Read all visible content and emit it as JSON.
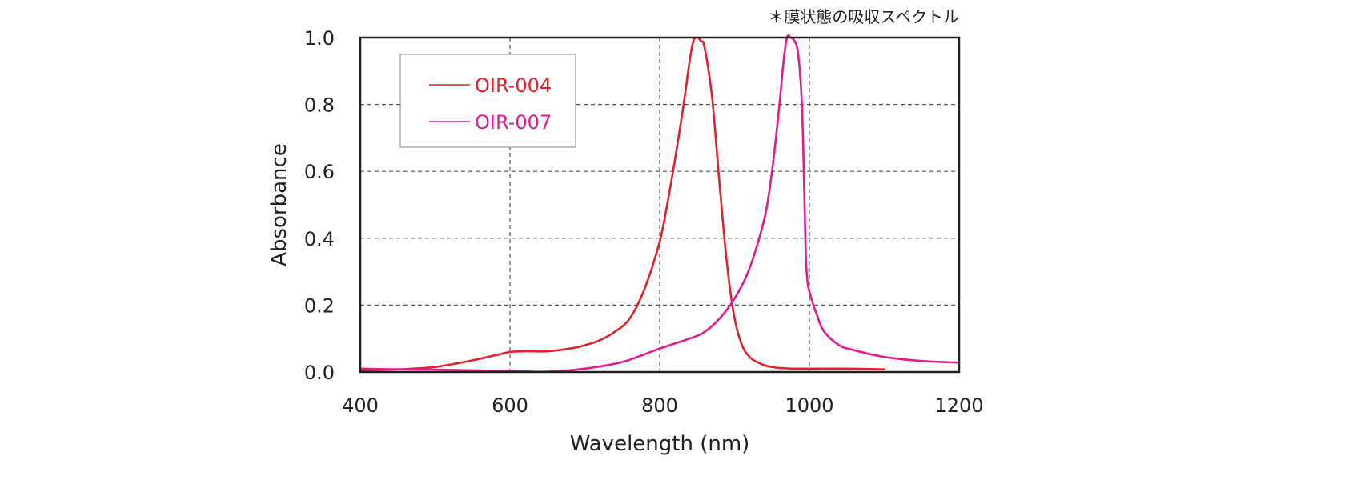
{
  "chart_data": {
    "type": "line",
    "title": "",
    "note": "＊膜状態の吸収スペクトル",
    "xlabel": "Wavelength (nm)",
    "ylabel": "Absorbance",
    "xlim": [
      400,
      1200
    ],
    "ylim": [
      0,
      1.0
    ],
    "xticks": [
      "400",
      "600",
      "800",
      "1000",
      "1200"
    ],
    "yticks": [
      "0.0",
      "0.2",
      "0.4",
      "0.6",
      "0.8",
      "1.0"
    ],
    "grid": true,
    "legend_position": "top-left",
    "series": [
      {
        "name": "OIR-004",
        "color": "#e3202a",
        "x": [
          400,
          450,
          500,
          550,
          580,
          600,
          620,
          650,
          680,
          700,
          720,
          740,
          760,
          780,
          800,
          810,
          820,
          830,
          840,
          845,
          850,
          855,
          860,
          870,
          880,
          890,
          900,
          910,
          920,
          930,
          940,
          950,
          960,
          980,
          1000,
          1050,
          1100
        ],
        "y": [
          0.005,
          0.008,
          0.015,
          0.035,
          0.05,
          0.06,
          0.062,
          0.062,
          0.07,
          0.08,
          0.095,
          0.12,
          0.16,
          0.25,
          0.39,
          0.5,
          0.63,
          0.77,
          0.93,
          0.99,
          1.0,
          0.99,
          0.97,
          0.82,
          0.56,
          0.32,
          0.16,
          0.08,
          0.045,
          0.03,
          0.02,
          0.015,
          0.012,
          0.01,
          0.01,
          0.01,
          0.008
        ]
      },
      {
        "name": "OIR-007",
        "color": "#e5198b",
        "x": [
          400,
          450,
          500,
          550,
          600,
          650,
          700,
          750,
          800,
          840,
          860,
          880,
          900,
          920,
          940,
          950,
          960,
          965,
          970,
          975,
          980,
          985,
          990,
          993,
          995,
          997,
          1000,
          1010,
          1020,
          1040,
          1060,
          1100,
          1150,
          1200
        ],
        "y": [
          0.01,
          0.008,
          0.007,
          0.005,
          0.003,
          0.001,
          0.01,
          0.03,
          0.07,
          0.1,
          0.12,
          0.16,
          0.22,
          0.31,
          0.46,
          0.6,
          0.8,
          0.92,
          1.0,
          1.0,
          0.99,
          0.95,
          0.8,
          0.55,
          0.36,
          0.28,
          0.24,
          0.17,
          0.12,
          0.08,
          0.065,
          0.045,
          0.033,
          0.028
        ]
      }
    ]
  }
}
